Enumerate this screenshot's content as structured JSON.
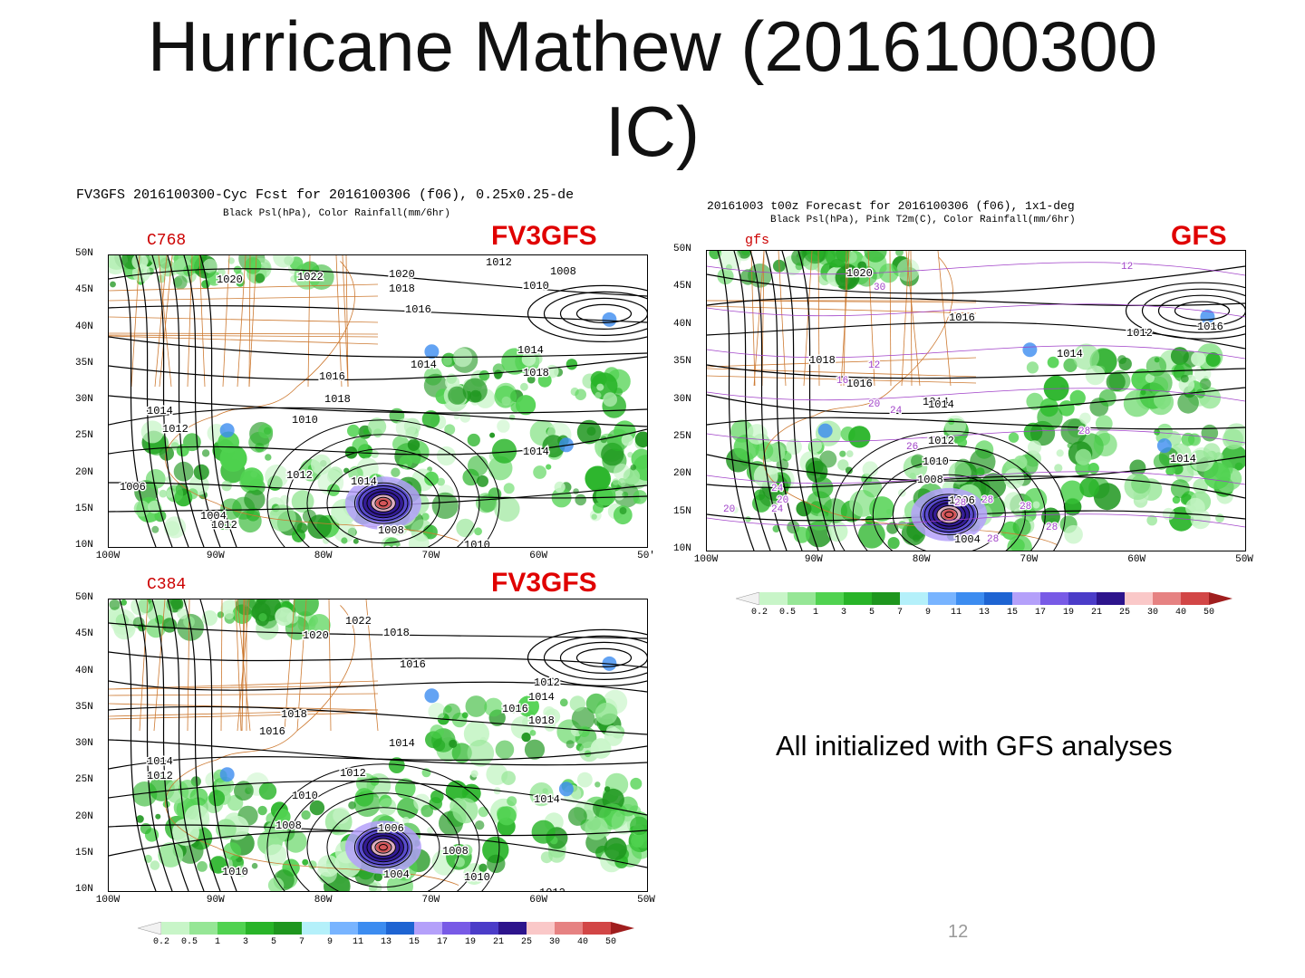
{
  "slide": {
    "title_line1": "Hurricane Mathew  (2016100300",
    "title_line2": "IC)",
    "note": "All initialized with GFS analyses",
    "page_number": "12"
  },
  "left_header": {
    "line1": "FV3GFS 2016100300-Cyc Fcst for 2016100306 (f06), 0.25x0.25-de",
    "line2": "Black Psl(hPa), Color Rainfall(mm/6hr)"
  },
  "right_header": {
    "line1": "20161003 t00z Forecast for 2016100306 (f06), 1x1-deg",
    "line2": "Black Psl(hPa), Pink T2m(C), Color Rainfall(mm/6hr)"
  },
  "panels": [
    {
      "id": "c768",
      "model": "FV3GFS",
      "label": "C768",
      "isobars": [
        "1020",
        "1022",
        "1020",
        "1018",
        "1010",
        "1008",
        "1016",
        "1014",
        "1014",
        "1018",
        "1016",
        "1018",
        "1014",
        "1012",
        "1010",
        "1014",
        "1012",
        "1014",
        "1008",
        "1006",
        "1004",
        "1012",
        "1010",
        "1008",
        "1010",
        "1012"
      ]
    },
    {
      "id": "c384",
      "model": "FV3GFS",
      "label": "C384",
      "isobars": [
        "1022",
        "1020",
        "1018",
        "1016",
        "1012",
        "1014",
        "1016",
        "1018",
        "1018",
        "1016",
        "1014",
        "1014",
        "1012",
        "1012",
        "1010",
        "1014",
        "1008",
        "1006",
        "1008",
        "1004",
        "1010",
        "1010",
        "1012"
      ]
    },
    {
      "id": "gfs",
      "model": "GFS",
      "label": "gfs",
      "isobars": [
        "1020",
        "1016",
        "1012",
        "1016",
        "1014",
        "1018",
        "1016",
        "1014",
        "1014",
        "1012",
        "1010",
        "1008",
        "1006",
        "1014",
        "1004"
      ],
      "t2m": [
        "12",
        "30",
        "12",
        "16",
        "20",
        "24",
        "28",
        "26",
        "28",
        "24",
        "20",
        "28",
        "28",
        "28",
        "28",
        "20",
        "24"
      ]
    }
  ],
  "axes": {
    "lat_labels": [
      "50N",
      "45N",
      "40N",
      "35N",
      "30N",
      "25N",
      "20N",
      "15N",
      "10N"
    ],
    "lon_labels": [
      "100W",
      "90W",
      "80W",
      "70W",
      "60W",
      "50W"
    ],
    "lon_labels_c768": [
      "100W",
      "90W",
      "80W",
      "70W",
      "60W",
      "50'"
    ]
  },
  "colorbar": {
    "labels": [
      "0.2",
      "0.5",
      "1",
      "3",
      "5",
      "7",
      "9",
      "11",
      "13",
      "15",
      "17",
      "19",
      "21",
      "25",
      "30",
      "40",
      "50"
    ],
    "colors": [
      "#e6ffe6",
      "#c8f5c8",
      "#96e696",
      "#50d250",
      "#28b428",
      "#1e961e",
      "#b4f0fa",
      "#78b4ff",
      "#3c8cf0",
      "#1e64d2",
      "#b4a0fa",
      "#785ae6",
      "#4b3cc8",
      "#2d148c",
      "#fac8c8",
      "#e68282",
      "#d24646",
      "#a01e1e"
    ]
  },
  "colors": {
    "model_label": "#e00000",
    "isobar": "#000000",
    "borders": "#cd7a32",
    "t2m": "#a040c8"
  }
}
